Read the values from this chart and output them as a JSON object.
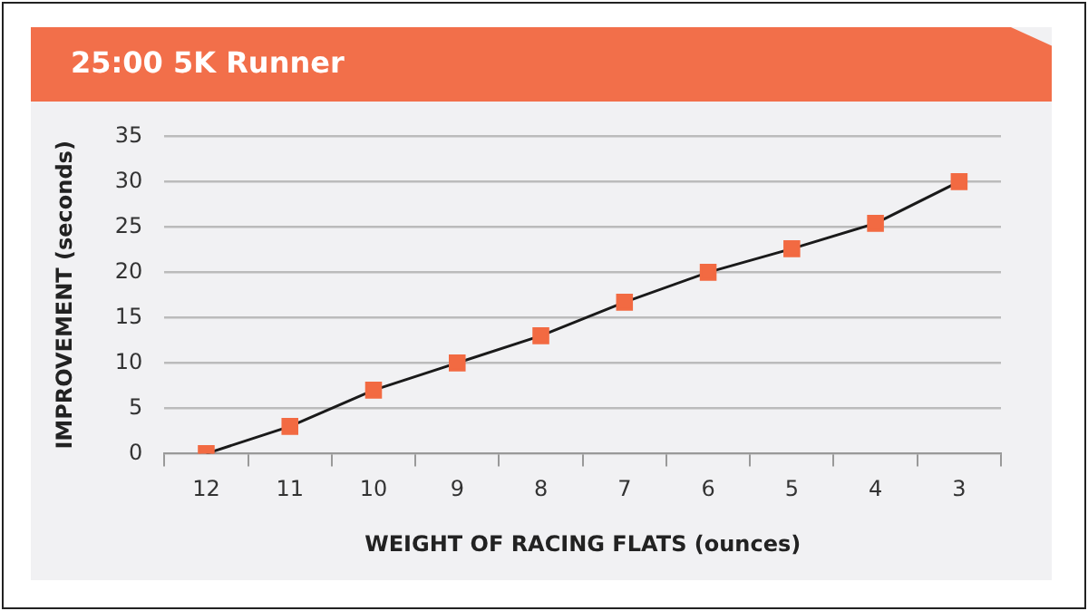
{
  "chart_data": {
    "type": "line",
    "title": "25:00 5K Runner",
    "xlabel": "WEIGHT OF RACING FLATS (ounces)",
    "ylabel": "IMPROVEMENT (seconds)",
    "categories": [
      "12",
      "11",
      "10",
      "9",
      "8",
      "7",
      "6",
      "5",
      "4",
      "3"
    ],
    "series": [
      {
        "color": "#f26a42",
        "values": [
          0,
          3,
          7,
          10,
          13,
          16.7,
          20,
          22.6,
          25.4,
          30
        ]
      }
    ],
    "ylim": [
      0,
      35
    ],
    "yticks": [
      0,
      5,
      10,
      15,
      20,
      25,
      30,
      35
    ],
    "grid": "y",
    "legend": false,
    "marker": "square",
    "line_style": "solid"
  }
}
